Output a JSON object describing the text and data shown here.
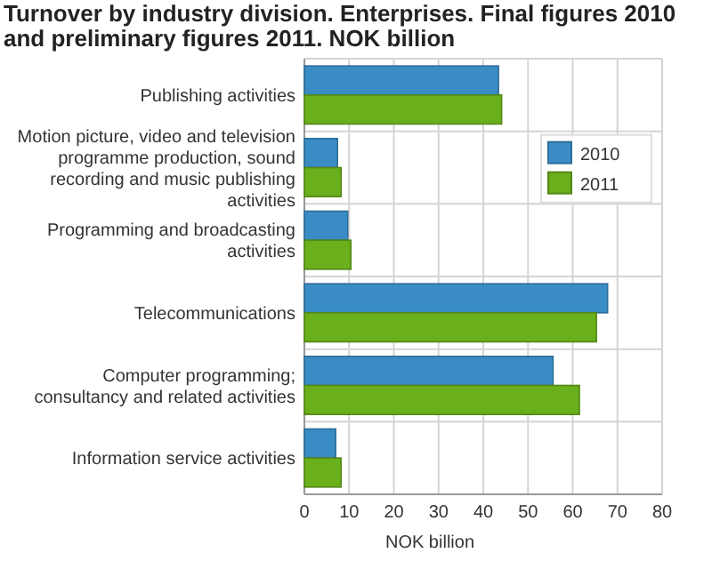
{
  "chart_data": {
    "type": "bar",
    "orientation": "horizontal",
    "title": "Turnover by industry division. Enterprises. Final figures 2010 and preliminary figures 2011. NOK billion",
    "xlabel": "NOK billion",
    "categories": [
      "Publishing activities",
      "Motion picture, video and television programme production, sound recording and music publishing activities",
      "Programming and broadcasting activities",
      "Telecommunications",
      "Computer programming; consultancy and related activities",
      "Information service activities"
    ],
    "series": [
      {
        "name": "2010",
        "color": "#3a8cc4",
        "values": [
          43.4,
          7.4,
          9.7,
          67.8,
          55.6,
          7.0
        ]
      },
      {
        "name": "2011",
        "color": "#6aaf1c",
        "values": [
          44.1,
          8.2,
          10.4,
          65.3,
          61.5,
          8.2
        ]
      }
    ],
    "xlim": [
      0,
      80
    ],
    "xticks": [
      0,
      10,
      20,
      30,
      40,
      50,
      60,
      70,
      80
    ],
    "grid": true,
    "legend": "top right"
  }
}
